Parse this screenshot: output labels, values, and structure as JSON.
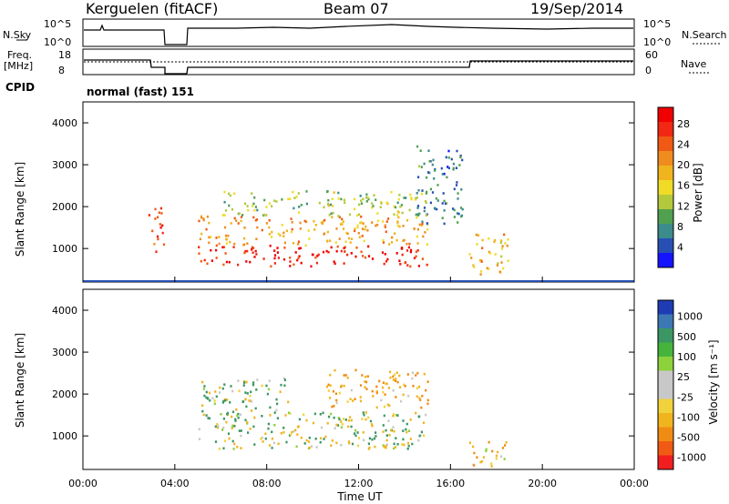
{
  "header": {
    "title": "Kerguelen (fitACF)",
    "beam": "Beam 07",
    "date": "19/Sep/2014"
  },
  "top_panels": {
    "nsky_label": "N.Sky",
    "nsearch_label": "N.Search",
    "noise_ticks": [
      "10^5",
      "10^0"
    ],
    "freq_label_1": "Freq.",
    "freq_label_2": "[MHz]",
    "freq_ticks": [
      "18",
      "8"
    ],
    "nave_label": "Nave",
    "nave_ticks": [
      "60",
      "0"
    ],
    "cpid_label": "CPID",
    "cpid_value": "normal (fast) 151"
  },
  "axes": {
    "ylabel": "Slant Range [km]",
    "xlabel": "Time UT",
    "y_ticks": [
      "1000",
      "2000",
      "3000",
      "4000"
    ],
    "x_ticks": [
      "00:00",
      "04:00",
      "08:00",
      "12:00",
      "16:00",
      "20:00",
      "00:00"
    ]
  },
  "power_scale": {
    "label": "Power [dB]",
    "ticks": [
      "4",
      "8",
      "12",
      "16",
      "20",
      "24",
      "28"
    ],
    "colors": [
      "#1414ff",
      "#2850b4",
      "#3c8c8c",
      "#50a050",
      "#b4c83c",
      "#f0dc28",
      "#f0b41e",
      "#f08c1e",
      "#f05a14",
      "#f02814",
      "#f00000"
    ]
  },
  "velocity_scale": {
    "label": "Velocity [m s⁻¹]",
    "ticks": [
      "1000",
      "500",
      "100",
      "25",
      "-25",
      "-100",
      "-500",
      "-1000"
    ],
    "colors": [
      "#1e3cb4",
      "#3c78b4",
      "#3c9664",
      "#46b43c",
      "#8cd23c",
      "#c8c8c8",
      "#c8c8c8",
      "#f0d23c",
      "#f0b41e",
      "#f08c14",
      "#f05a14",
      "#f01e1e"
    ]
  },
  "chart_data": [
    {
      "type": "heatmap",
      "title": "Power [dB]",
      "xlabel": "Time UT",
      "ylabel": "Slant Range [km]",
      "xlim": [
        0,
        24
      ],
      "ylim": [
        200,
        4500
      ],
      "data_gap_hours": [
        3.6,
        4.5
      ],
      "regions": [
        {
          "t0": 5.0,
          "t1": 15.0,
          "r0": 600,
          "r1": 1100,
          "power_db": 28
        },
        {
          "t0": 5.0,
          "t1": 15.0,
          "r0": 1100,
          "r1": 1800,
          "power_db": 20
        },
        {
          "t0": 6.0,
          "t1": 15.0,
          "r0": 1800,
          "r1": 2400,
          "power_db": 12
        },
        {
          "t0": 2.8,
          "t1": 3.5,
          "r0": 900,
          "r1": 2000,
          "power_db": 26
        },
        {
          "t0": 14.5,
          "t1": 16.5,
          "r0": 1600,
          "r1": 3500,
          "power_db": 6
        },
        {
          "t0": 16.8,
          "t1": 18.5,
          "r0": 400,
          "r1": 1400,
          "power_db": 18
        }
      ]
    },
    {
      "type": "heatmap",
      "title": "Velocity [m s⁻¹]",
      "xlabel": "Time UT",
      "ylabel": "Slant Range [km]",
      "xlim": [
        0,
        24
      ],
      "ylim": [
        200,
        4500
      ],
      "regions": [
        {
          "t0": 5.0,
          "t1": 15.0,
          "r0": 700,
          "r1": 1600,
          "velocity": 0
        },
        {
          "t0": 10.5,
          "t1": 15.0,
          "r0": 1700,
          "r1": 2600,
          "velocity": -200
        },
        {
          "t0": 5.0,
          "t1": 9.0,
          "r0": 1500,
          "r1": 2400,
          "velocity": 80
        },
        {
          "t0": 16.8,
          "t1": 18.5,
          "r0": 300,
          "r1": 900,
          "velocity": -150
        }
      ]
    }
  ]
}
